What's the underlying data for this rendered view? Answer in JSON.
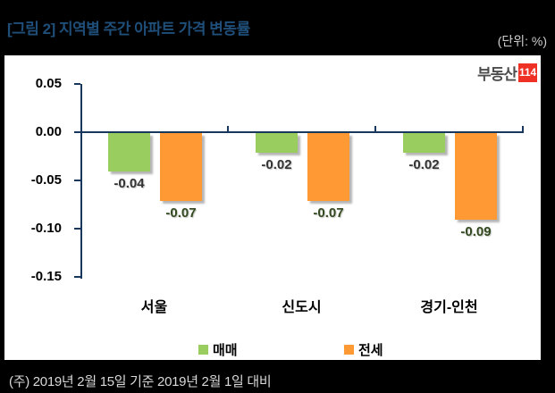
{
  "header": {
    "title": "[그림 2] 지역별 주간 아파트 가격 변동률",
    "unit": "(단위: %)"
  },
  "logo": {
    "text": "부동산",
    "badge": "114"
  },
  "footer": {
    "note": "(주) 2019년 2월 15일 기준 2019년 2월 1일 대비"
  },
  "colors": {
    "background": "#000000",
    "panel": "#FFFFFF",
    "title_blue": "#1F4E79",
    "axis_navy": "#17375D",
    "sale_green": "#9ACD60",
    "jeonse_orange": "#FF9933",
    "sale_label": "#333333",
    "jeonse_label": "#33491F",
    "logo_badge_red": "#EE3124"
  },
  "chart_data": {
    "type": "bar",
    "title": "지역별 주간 아파트 가격 변동률",
    "categories": [
      "서울",
      "신도시",
      "경기-인천"
    ],
    "series": [
      {
        "name": "매매",
        "color": "#9ACD60",
        "label_color": "#333333",
        "values": [
          -0.04,
          -0.02,
          -0.02
        ]
      },
      {
        "name": "전세",
        "color": "#FF9933",
        "label_color": "#33491F",
        "values": [
          -0.07,
          -0.07,
          -0.09
        ]
      }
    ],
    "data_labels": [
      [
        "-0.04",
        "-0.02",
        "-0.02"
      ],
      [
        "-0.07",
        "-0.07",
        "-0.09"
      ]
    ],
    "xlabel": "",
    "ylabel": "",
    "yunit": "%",
    "ylim": [
      -0.15,
      0.05
    ],
    "yticks": [
      "0.05",
      "0.00",
      "-0.05",
      "-0.10",
      "-0.15"
    ],
    "grid": false,
    "legend_position": "bottom"
  }
}
